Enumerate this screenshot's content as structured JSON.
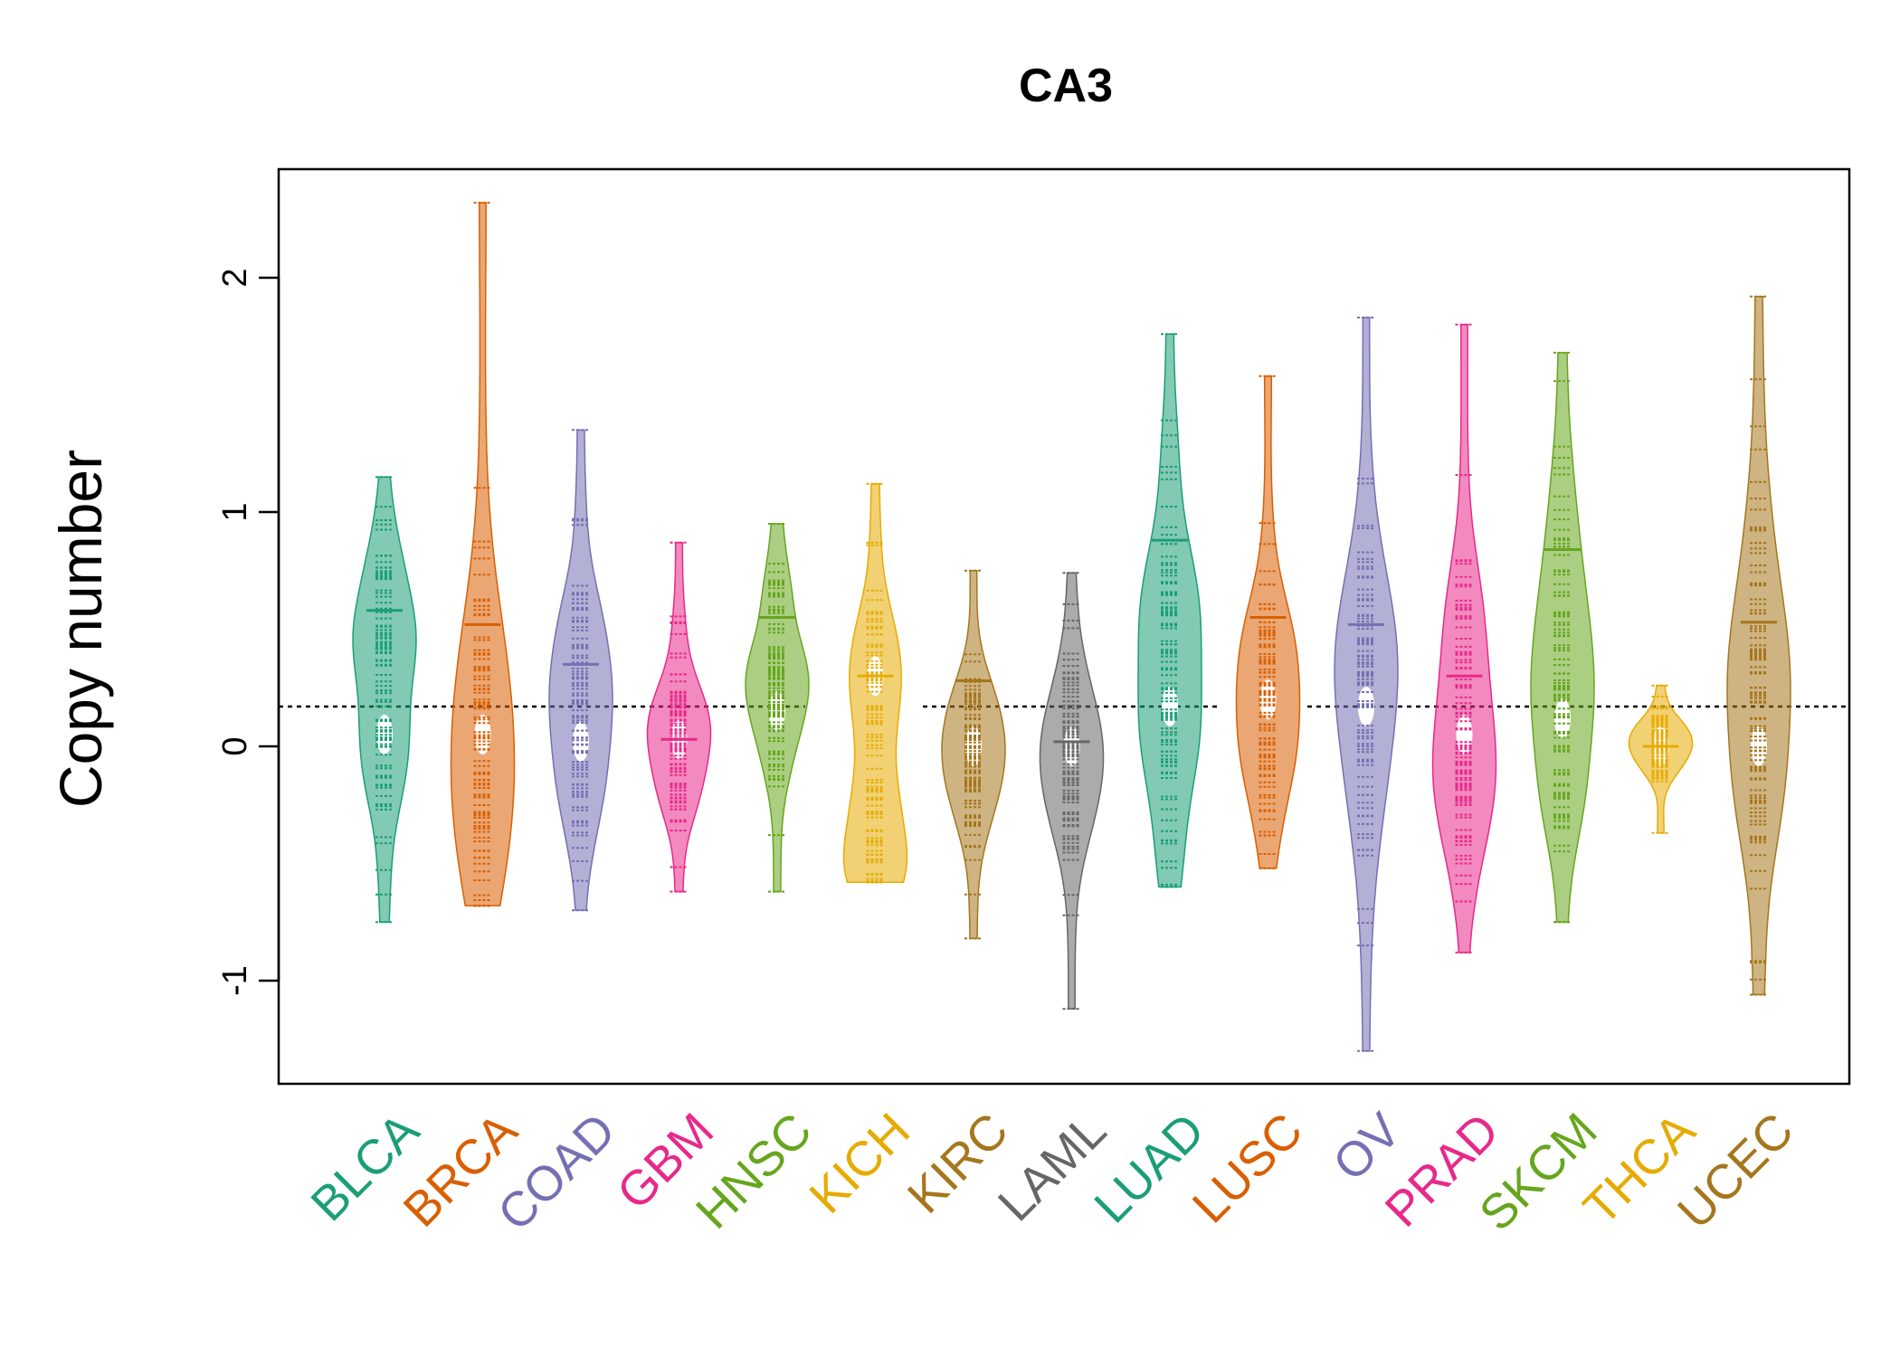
{
  "chart_data": {
    "type": "beanplot",
    "title": "CA3",
    "xlabel": "",
    "ylabel": "Copy number",
    "ylim": [
      -1.45,
      2.45
    ],
    "yticks": [
      {
        "value": -1,
        "label": "-1"
      },
      {
        "value": 0,
        "label": "0"
      },
      {
        "value": 1,
        "label": "1"
      },
      {
        "value": 2,
        "label": "2"
      }
    ],
    "reference_line": 0.17,
    "grid": false,
    "categories": [
      {
        "label": "BLCA",
        "color": "#1B9E77",
        "min": -0.75,
        "max": 1.15,
        "mean": 0.58,
        "center": 0.05,
        "peaks": [
          0.05,
          0.6
        ]
      },
      {
        "label": "BRCA",
        "color": "#D95F02",
        "min": -0.68,
        "max": 2.32,
        "mean": 0.52,
        "center": 0.05,
        "peaks": [
          0.0,
          0.1
        ]
      },
      {
        "label": "COAD",
        "color": "#7570B3",
        "min": -0.7,
        "max": 1.35,
        "mean": 0.35,
        "center": 0.02,
        "peaks": [
          0.0,
          0.4
        ]
      },
      {
        "label": "GBM",
        "color": "#E7298A",
        "min": -0.62,
        "max": 0.87,
        "mean": 0.03,
        "center": 0.03,
        "peaks": [
          0.03
        ]
      },
      {
        "label": "HNSC",
        "color": "#66A61E",
        "min": -0.62,
        "max": 0.95,
        "mean": 0.55,
        "center": 0.15,
        "peaks": [
          0.12,
          0.5
        ]
      },
      {
        "label": "KICH",
        "color": "#E6AB02",
        "min": -0.58,
        "max": 1.12,
        "mean": 0.3,
        "center": 0.3,
        "peaks": [
          0.3,
          -0.45
        ]
      },
      {
        "label": "KIRC",
        "color": "#A6761D",
        "min": -0.82,
        "max": 0.75,
        "mean": 0.28,
        "center": 0.0,
        "peaks": [
          0.0
        ]
      },
      {
        "label": "LAML",
        "color": "#666666",
        "min": -1.12,
        "max": 0.74,
        "mean": 0.02,
        "center": 0.0,
        "peaks": [
          -0.05
        ]
      },
      {
        "label": "LUAD",
        "color": "#1B9E77",
        "min": -0.6,
        "max": 1.76,
        "mean": 0.88,
        "center": 0.17,
        "peaks": [
          0.0,
          0.6
        ]
      },
      {
        "label": "LUSC",
        "color": "#D95F02",
        "min": -0.52,
        "max": 1.58,
        "mean": 0.55,
        "center": 0.2,
        "peaks": [
          0.2
        ]
      },
      {
        "label": "OV",
        "color": "#7570B3",
        "min": -1.3,
        "max": 1.83,
        "mean": 0.52,
        "center": 0.17,
        "peaks": [
          0.17
        ]
      },
      {
        "label": "PRAD",
        "color": "#E7298A",
        "min": -0.88,
        "max": 1.8,
        "mean": 0.3,
        "center": 0.05,
        "peaks": [
          0.02
        ]
      },
      {
        "label": "SKCM",
        "color": "#66A61E",
        "min": -0.75,
        "max": 1.68,
        "mean": 0.84,
        "center": 0.12,
        "peaks": [
          0.05,
          0.55
        ]
      },
      {
        "label": "THCA",
        "color": "#E6AB02",
        "min": -0.37,
        "max": 0.26,
        "mean": 0.0,
        "center": 0.0,
        "peaks": [
          0.0
        ]
      },
      {
        "label": "UCEC",
        "color": "#A6761D",
        "min": -1.06,
        "max": 1.92,
        "mean": 0.53,
        "center": 0.0,
        "peaks": [
          0.0,
          0.55
        ]
      }
    ]
  }
}
